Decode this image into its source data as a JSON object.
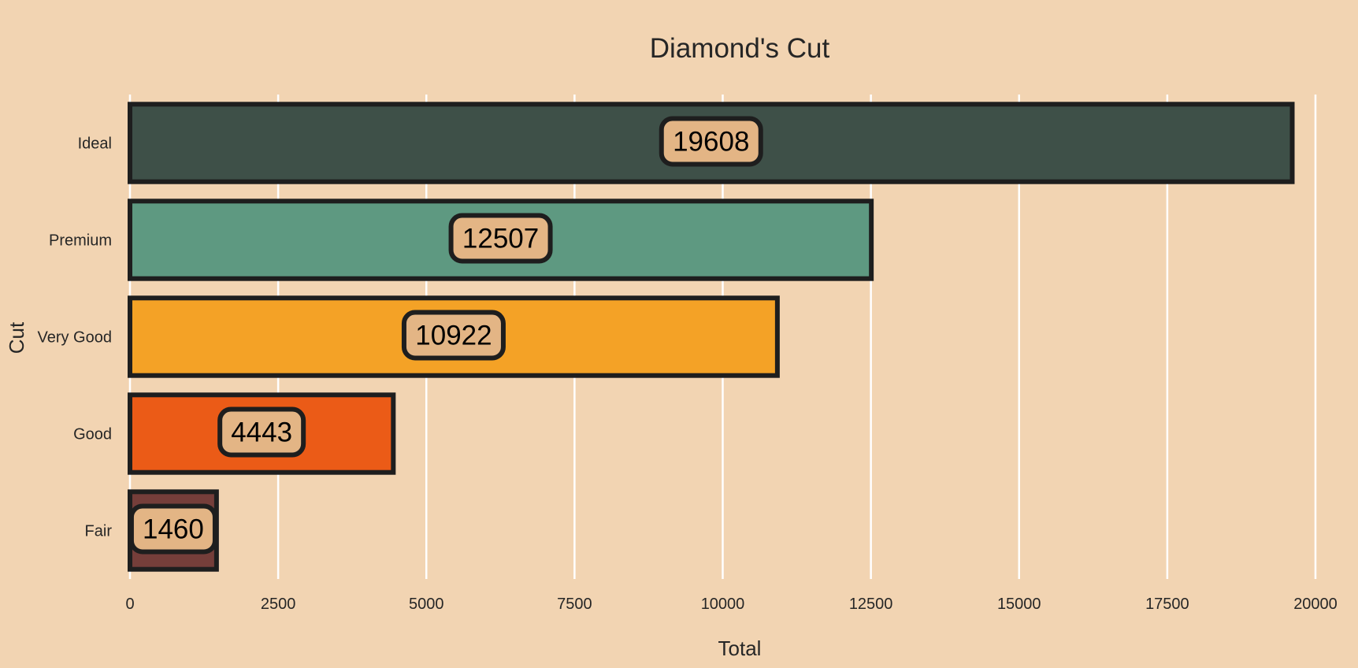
{
  "chart_data": {
    "type": "bar",
    "orientation": "horizontal",
    "title": "Diamond's Cut",
    "xlabel": "Total",
    "ylabel": "Cut",
    "categories": [
      "Ideal",
      "Premium",
      "Very Good",
      "Good",
      "Fair"
    ],
    "values": [
      19608,
      12507,
      10922,
      4443,
      1460
    ],
    "value_labels": [
      "19608",
      "12507",
      "10922",
      "4443",
      "1460"
    ],
    "bar_colors": [
      "#3e5048",
      "#5e9981",
      "#f4a226",
      "#eb5b17",
      "#753e3a"
    ],
    "xlim": [
      0,
      20000
    ],
    "xticks": [
      0,
      2500,
      5000,
      7500,
      10000,
      12500,
      15000,
      17500,
      20000
    ],
    "xtick_labels": [
      "0",
      "2500",
      "5000",
      "7500",
      "10000",
      "12500",
      "15000",
      "17500",
      "20000"
    ],
    "grid": "vertical",
    "legend": "none",
    "colors": {
      "background": "#f2d4b2",
      "grid": "#ffffff",
      "bar_edge": "#1e1e1e",
      "label_box": "#e3b585",
      "text": "#262626"
    }
  }
}
